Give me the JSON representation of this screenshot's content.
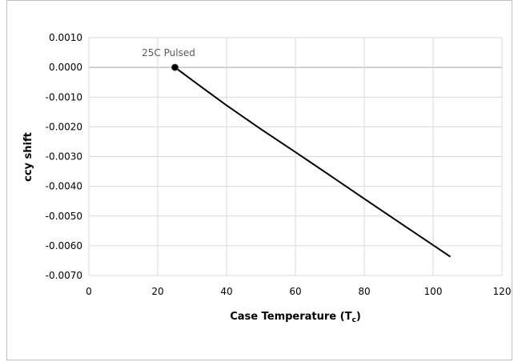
{
  "chart_data": {
    "type": "line",
    "xlabel": "Case Temperature (T",
    "xlabel_sub": "c",
    "xlabel_end": ")",
    "ylabel": "ccy shift",
    "xlim": [
      0,
      120
    ],
    "ylim": [
      -0.007,
      0.001
    ],
    "x_ticks": [
      "0",
      "20",
      "40",
      "60",
      "80",
      "100",
      "120"
    ],
    "y_ticks": [
      "0.0010",
      "0.0000",
      "-0.0010",
      "-0.0020",
      "-0.0030",
      "-0.0040",
      "-0.0050",
      "-0.0060",
      "-0.0070"
    ],
    "grid": true,
    "series": [
      {
        "color": "#000000",
        "x": [
          25,
          30,
          40,
          50,
          60,
          70,
          80,
          90,
          100,
          105
        ],
        "y": [
          0.0,
          -0.00043,
          -0.00128,
          -0.00208,
          -0.00285,
          -0.00363,
          -0.00442,
          -0.0052,
          -0.00598,
          -0.00637
        ]
      }
    ],
    "annotations": [
      {
        "text": "25C Pulsed",
        "x": 25,
        "y": 0.0
      }
    ],
    "marker_point": {
      "x": 25,
      "y": 0.0
    }
  }
}
